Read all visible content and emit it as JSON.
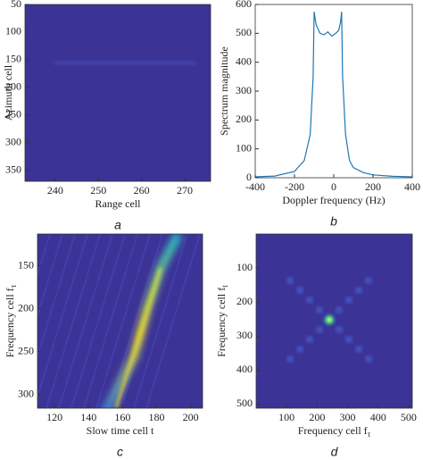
{
  "chart_data": [
    {
      "type": "heatmap",
      "caption": "a",
      "xlabel": "Range cell",
      "ylabel": "Azimuth cell",
      "xlim": [
        233,
        276
      ],
      "xticks": [
        240,
        250,
        260,
        270
      ],
      "ylim": [
        50,
        370
      ],
      "yticks": [
        50,
        100,
        150,
        200,
        250,
        300,
        350
      ],
      "yreverse": true
    },
    {
      "type": "line",
      "caption": "b",
      "xlabel": "Doppler frequency (Hz)",
      "ylabel": "Spectrum magnitude",
      "xlim": [
        -400,
        400
      ],
      "xticks": [
        -400,
        -200,
        0,
        200,
        400
      ],
      "ylim": [
        0,
        600
      ],
      "yticks": [
        0,
        100,
        200,
        300,
        400,
        500,
        600
      ],
      "color": "#1f77b4",
      "x": [
        -400,
        -300,
        -200,
        -150,
        -120,
        -105,
        -100,
        -90,
        -70,
        -50,
        -30,
        -10,
        10,
        25,
        35,
        40,
        45,
        60,
        80,
        100,
        150,
        200,
        300,
        400
      ],
      "values": [
        3,
        6,
        22,
        60,
        150,
        350,
        575,
        530,
        500,
        495,
        505,
        490,
        500,
        510,
        540,
        575,
        350,
        150,
        60,
        35,
        18,
        10,
        5,
        3
      ]
    },
    {
      "type": "heatmap",
      "caption": "c",
      "xlabel": "Slow time cell t",
      "ylabel": {
        "text": "Frequency cell f",
        "subscript": "τ"
      },
      "xlim": [
        110,
        207
      ],
      "xticks": [
        120,
        140,
        160,
        180,
        200
      ],
      "ylim": [
        113,
        316
      ],
      "yticks": [
        150,
        200,
        250,
        300
      ],
      "yreverse": true
    },
    {
      "type": "heatmap",
      "caption": "d",
      "xlabel": {
        "text": "Frequency cell f",
        "subscript": "τ"
      },
      "ylabel": {
        "text": "Frequency cell f",
        "subscript": "t"
      },
      "xlim": [
        0,
        512
      ],
      "xticks": [
        100,
        200,
        300,
        400,
        500
      ],
      "ylim": [
        0,
        512
      ],
      "yticks": [
        100,
        200,
        300,
        400,
        500
      ],
      "yreverse": true
    }
  ]
}
